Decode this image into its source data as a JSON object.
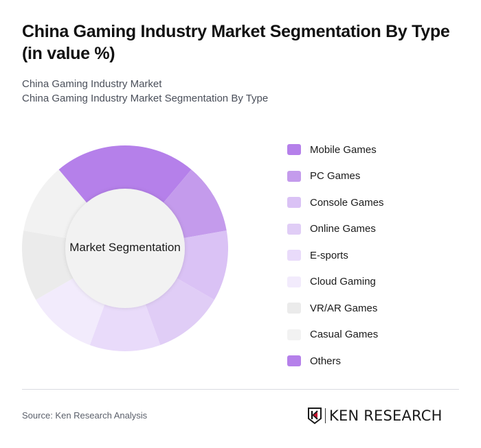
{
  "header": {
    "title": "China Gaming Industry Market Segmentation By Type (in value %)",
    "subtitle_line1": "China Gaming Industry Market",
    "subtitle_line2": "China Gaming Industry Market Segmentation By Type"
  },
  "chart": {
    "center_label": "Market Segmentation"
  },
  "legend": [
    {
      "label": "Mobile Games",
      "color": "#b580ea"
    },
    {
      "label": "PC Games",
      "color": "#c49bec"
    },
    {
      "label": "Console Games",
      "color": "#dac2f5"
    },
    {
      "label": "Online Games",
      "color": "#e0cdf6"
    },
    {
      "label": "E-sports",
      "color": "#e9dbfa"
    },
    {
      "label": "Cloud Gaming",
      "color": "#f2ebfc"
    },
    {
      "label": "VR/AR Games",
      "color": "#ebebeb"
    },
    {
      "label": "Casual Games",
      "color": "#f2f2f2"
    },
    {
      "label": "Others",
      "color": "#b580ea"
    }
  ],
  "footer": {
    "source": "Source: Ken Research Analysis",
    "logo_text": "KEN RESEARCH"
  },
  "chart_data": {
    "type": "pie",
    "variant": "donut",
    "title": "China Gaming Industry Market Segmentation By Type (in value %)",
    "center_label": "Market Segmentation",
    "categories": [
      "Mobile Games",
      "PC Games",
      "Console Games",
      "Online Games",
      "E-sports",
      "Cloud Gaming",
      "VR/AR Games",
      "Casual Games",
      "Others"
    ],
    "values": [
      11.1,
      11.1,
      11.1,
      11.1,
      11.1,
      11.1,
      11.1,
      11.1,
      11.1
    ],
    "colors": [
      "#b580ea",
      "#c49bec",
      "#dac2f5",
      "#e0cdf6",
      "#e9dbfa",
      "#f2ebfc",
      "#ebebeb",
      "#f2f2f2",
      "#b580ea"
    ],
    "legend_position": "right",
    "start_angle_deg": 0,
    "direction": "clockwise"
  }
}
